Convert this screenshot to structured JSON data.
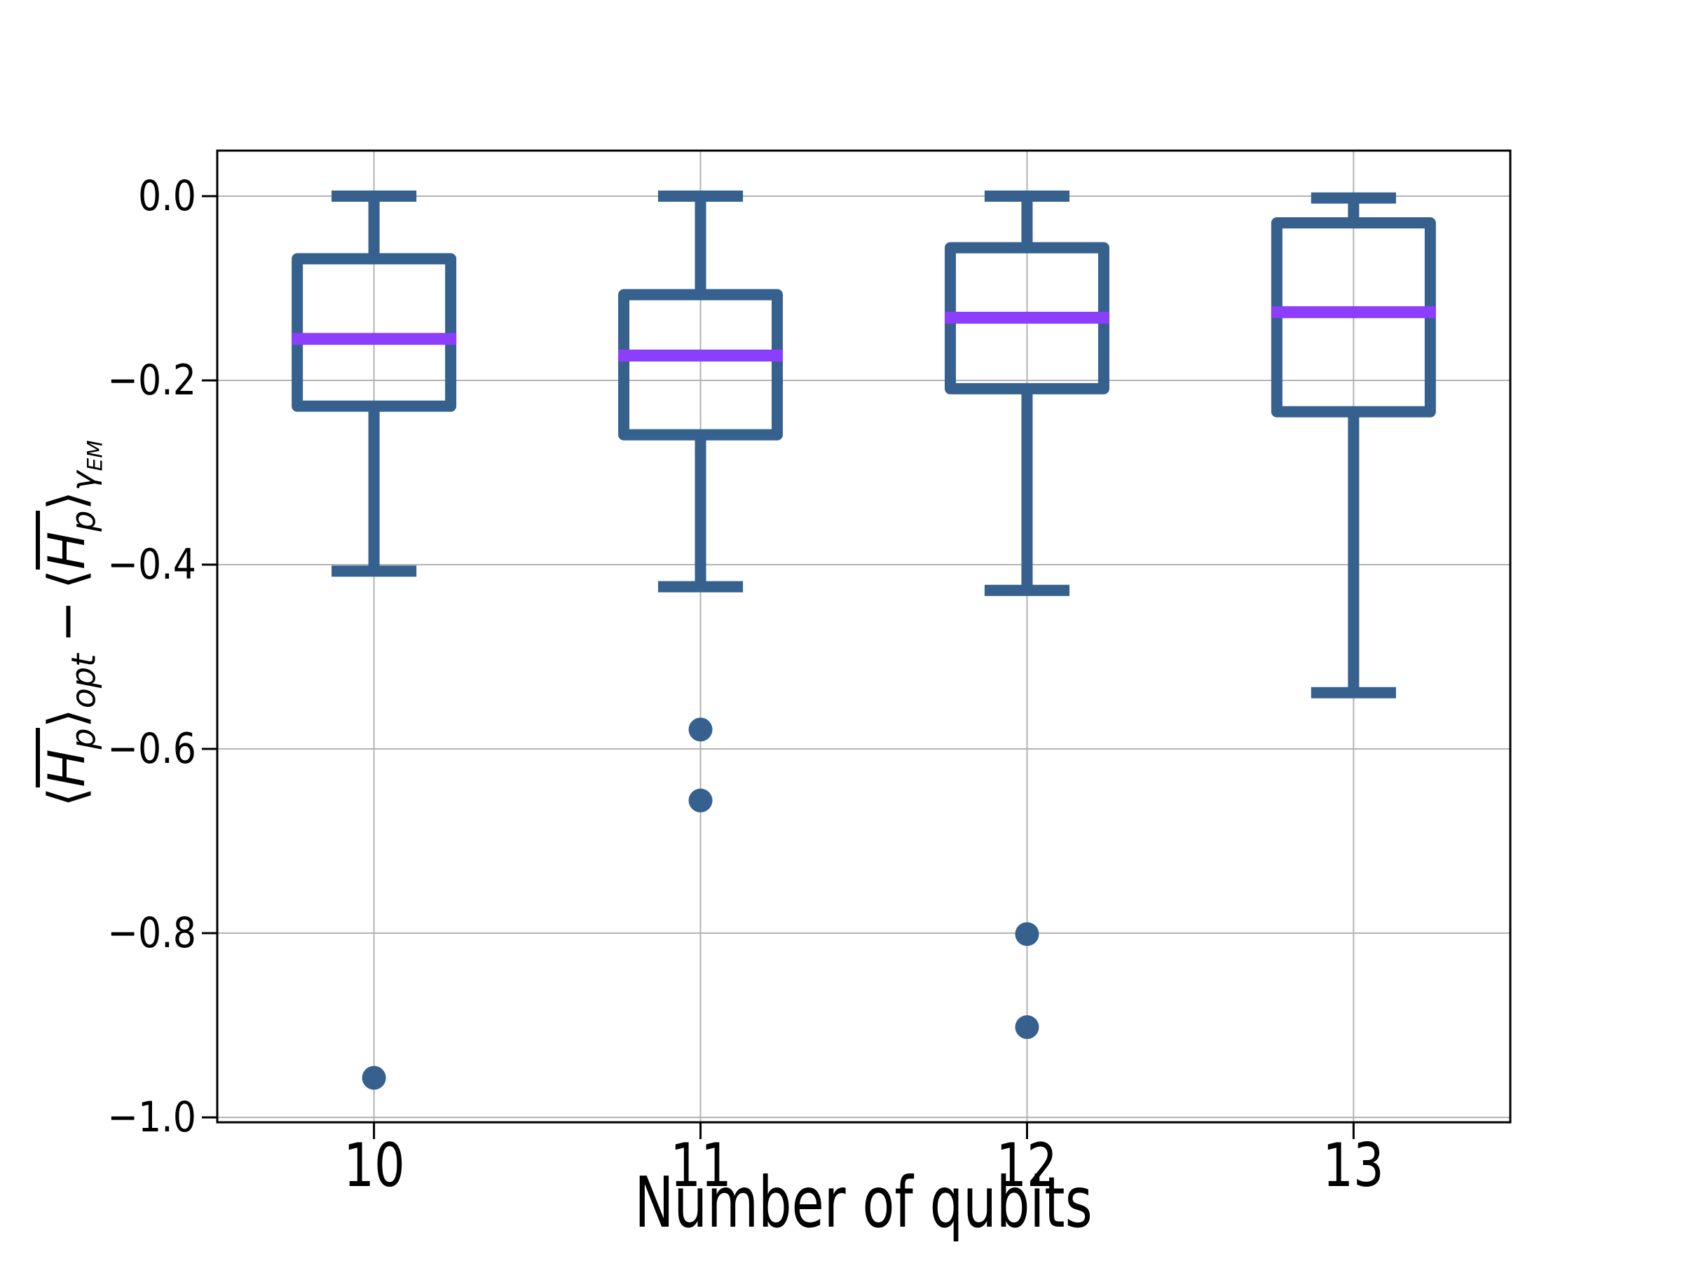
{
  "labels": {
    "xlabel": "Number of qubits",
    "ylabel_text": "⟨H̄p⟩opt − ⟨H̄p⟩γEM",
    "ylabel_parts": {
      "langle": "⟨",
      "H": "H",
      "p_sub": "p",
      "rangle": "⟩",
      "opt_sub": "opt",
      "minus": "−",
      "gamma_sub": "γ",
      "em_subsub": "EM"
    }
  },
  "chart_data": {
    "type": "box",
    "title": "",
    "xlabel": "Number of qubits",
    "ylabel": "⟨H̄p⟩_opt − ⟨H̄p⟩_γ_EM",
    "categories": [
      "10",
      "11",
      "12",
      "13"
    ],
    "x_positions": [
      1,
      2,
      3,
      4
    ],
    "ylim": [
      -1.005,
      0.049
    ],
    "yticks": [
      0.0,
      -0.2,
      -0.4,
      -0.6,
      -0.8,
      -1.0
    ],
    "ytick_labels": [
      "0.0",
      "−0.2",
      "−0.4",
      "−0.6",
      "−0.8",
      "−1.0"
    ],
    "grid": true,
    "legend": "none",
    "series": [
      {
        "category": "10",
        "whisker_low": -0.407,
        "q1": -0.228,
        "median": -0.155,
        "q3": -0.068,
        "whisker_high": 0.0,
        "outliers": [
          -0.957
        ]
      },
      {
        "category": "11",
        "whisker_low": -0.424,
        "q1": -0.259,
        "median": -0.173,
        "q3": -0.107,
        "whisker_high": 0.0,
        "outliers": [
          -0.579,
          -0.656
        ]
      },
      {
        "category": "12",
        "whisker_low": -0.428,
        "q1": -0.209,
        "median": -0.132,
        "q3": -0.056,
        "whisker_high": 0.0,
        "outliers": [
          -0.801,
          -0.902
        ]
      },
      {
        "category": "13",
        "whisker_low": -0.539,
        "q1": -0.234,
        "median": -0.126,
        "q3": -0.029,
        "whisker_high": -0.002,
        "outliers": []
      }
    ],
    "style": {
      "box_color": "#36618F",
      "median_color": "#8B3EFB",
      "outlier_color": "#36618F",
      "grid_color": "#B3B3B3",
      "spine_color": "#000000",
      "text_color": "#000000",
      "box_width_data": 0.47,
      "cap_width_data": 0.26
    }
  }
}
